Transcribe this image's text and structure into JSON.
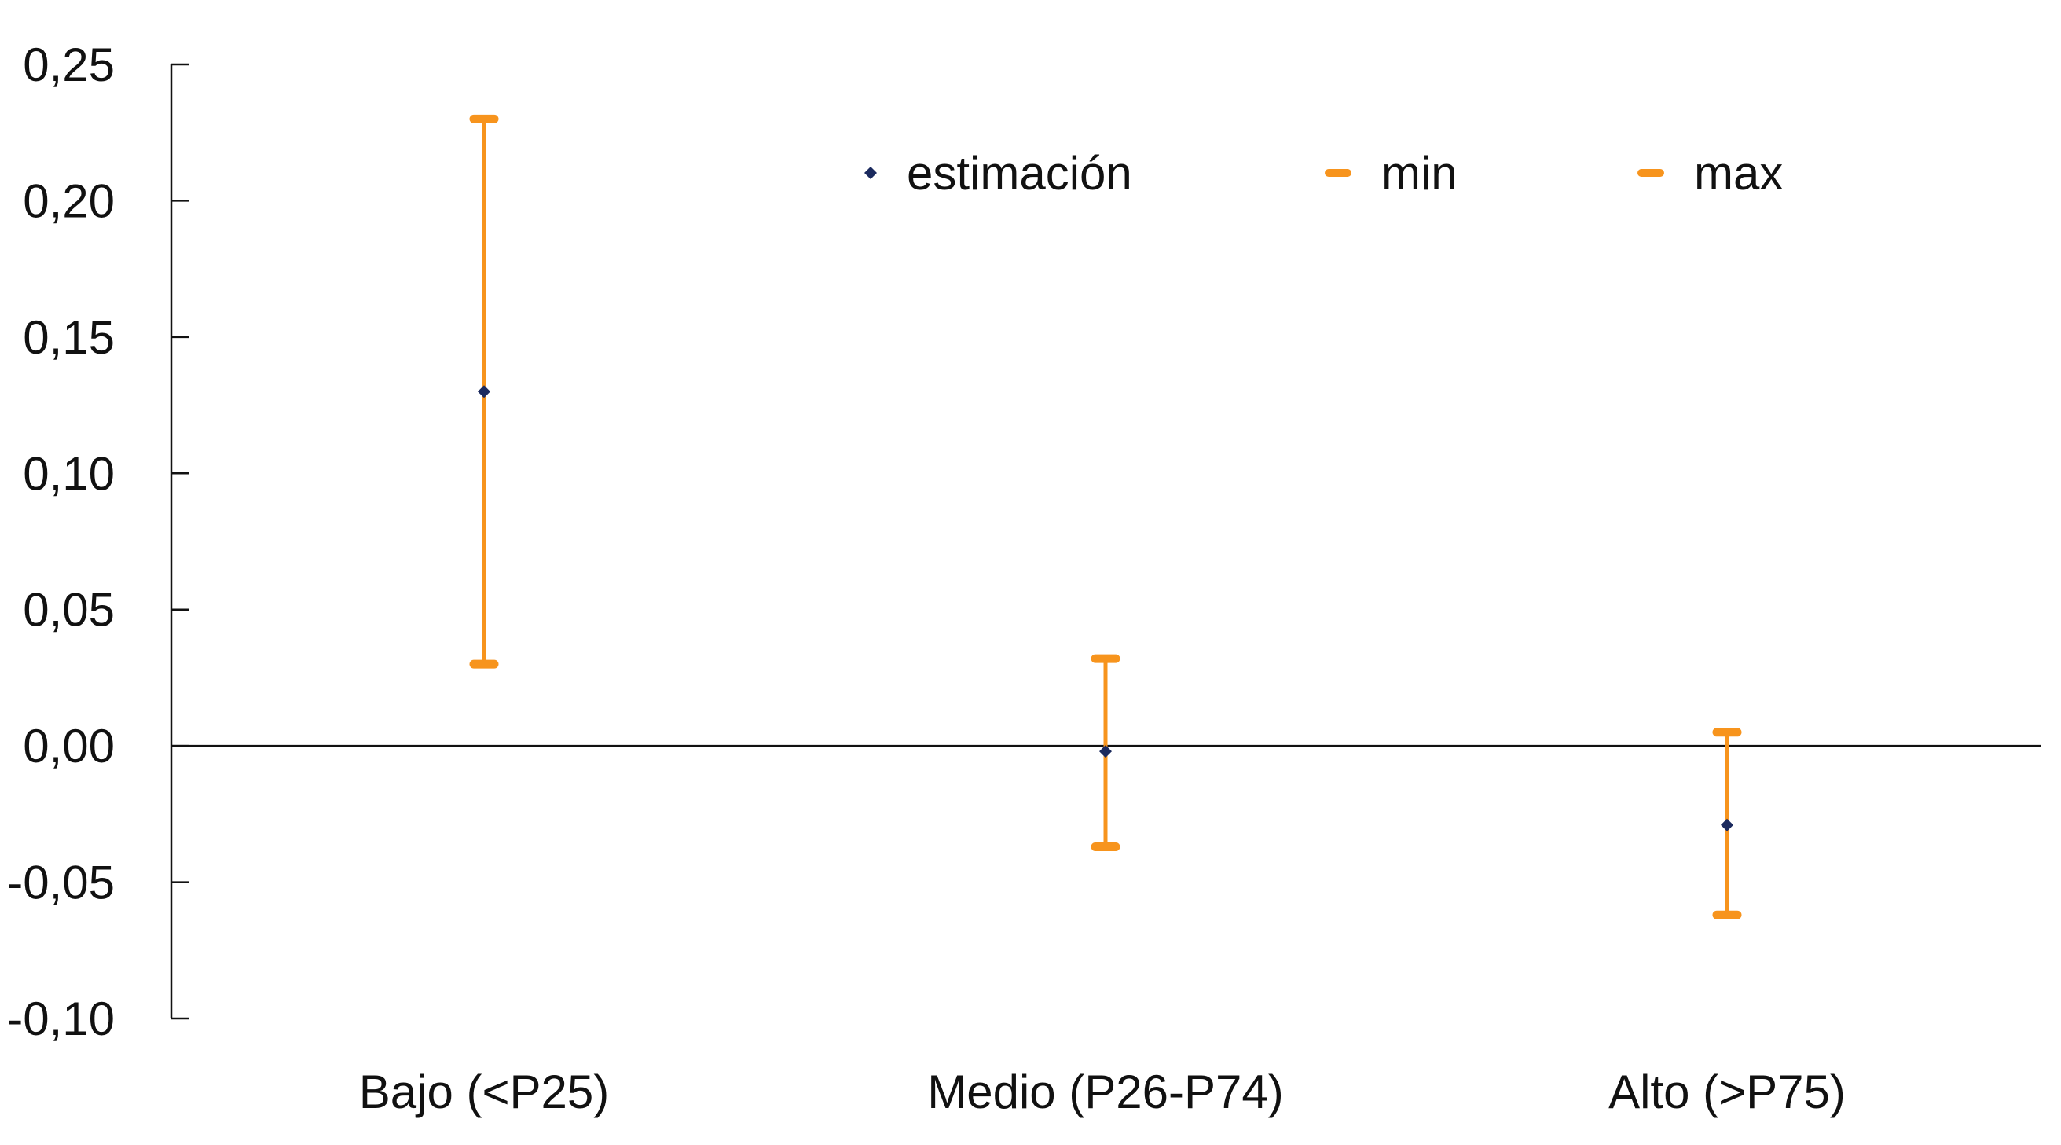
{
  "chart_data": {
    "type": "scatter",
    "categories": [
      "Bajo (<P25)",
      "Medio (P26-P74)",
      "Alto (>P75)"
    ],
    "series": [
      {
        "name": "estimación",
        "values": [
          0.13,
          -0.002,
          -0.029
        ],
        "color": "#1b2a5e",
        "marker": "diamond"
      },
      {
        "name": "min",
        "values": [
          0.03,
          -0.037,
          -0.062
        ],
        "color": "#f7941d",
        "marker": "dash"
      },
      {
        "name": "max",
        "values": [
          0.23,
          0.032,
          0.005
        ],
        "color": "#f7941d",
        "marker": "dash"
      }
    ],
    "error_bars": {
      "color": "#f7941d",
      "from": "min",
      "to": "max"
    },
    "ylim": [
      -0.1,
      0.25
    ],
    "yticks": [
      0.25,
      0.2,
      0.15,
      0.1,
      0.05,
      0.0,
      -0.05,
      -0.1
    ],
    "ytick_labels": [
      "0,25",
      "0,20",
      "0,15",
      "0,10",
      "0,05",
      "0,00",
      "-0,05",
      "-0,10"
    ],
    "zero_line": true,
    "grid": false,
    "legend": {
      "position": "top-center",
      "orientation": "horizontal"
    },
    "title": "",
    "xlabel": "",
    "ylabel": ""
  }
}
